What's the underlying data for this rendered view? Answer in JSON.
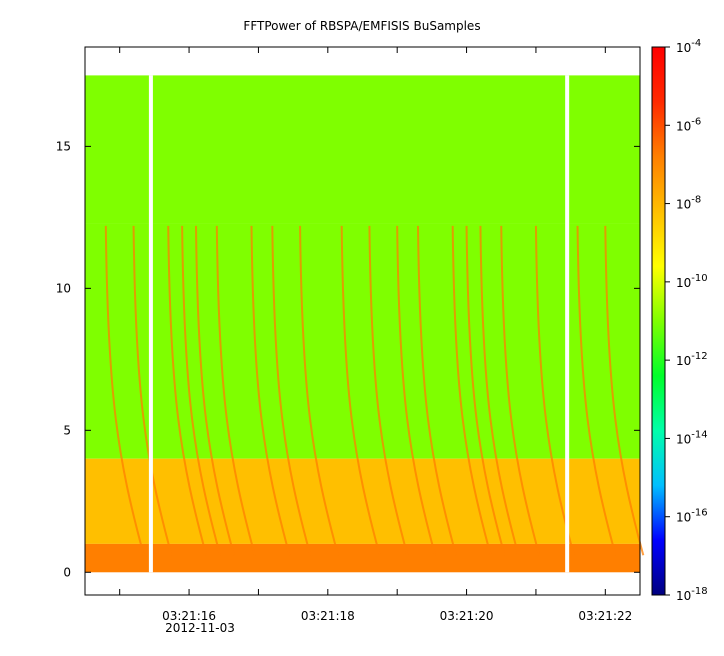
{
  "chart_data": {
    "type": "heatmap",
    "title": "FFTPower of RBSPA/EMFISIS  BuSamples",
    "x": {
      "ticks": [
        "03:21:16",
        "03:21:18",
        "03:21:20",
        "03:21:22"
      ],
      "tick_seconds": [
        16,
        18,
        20,
        22
      ],
      "range_seconds": [
        14.5,
        22.5
      ],
      "date_label": "2012-11-03"
    },
    "y": {
      "ticks": [
        "0",
        "5",
        "10",
        "15"
      ],
      "tick_values": [
        0,
        5,
        10,
        15
      ],
      "range": [
        -0.8,
        18.5
      ],
      "data_top": 17.5
    },
    "colorbar": {
      "scale": "log",
      "range": [
        "1e-18",
        "1e-4"
      ],
      "ticks": [
        "10",
        "10",
        "10",
        "10",
        "10",
        "10",
        "10",
        "10"
      ],
      "tick_exponents": [
        "-4",
        "-6",
        "-8",
        "-10",
        "-12",
        "-14",
        "-16",
        "-18"
      ],
      "tick_powers": [
        -4,
        -6,
        -8,
        -10,
        -12,
        -14,
        -16,
        -18
      ],
      "colors": [
        "#00007f",
        "#0000ff",
        "#00bfff",
        "#00ffaa",
        "#00ff2a",
        "#7fff00",
        "#ffff00",
        "#ffbf00",
        "#ff7f00",
        "#ff2a00",
        "#ff0000"
      ]
    },
    "data_gaps_seconds": [
      15.45,
      21.45
    ],
    "bands": [
      {
        "freq_from": 12.3,
        "freq_to": 17.5,
        "power_exp": -11.6
      },
      {
        "freq_from": 4.0,
        "freq_to": 12.3,
        "power_exp": -10.3
      },
      {
        "freq_from": 1.0,
        "freq_to": 4.0,
        "power_exp": -8.5
      },
      {
        "freq_from": 0.0,
        "freq_to": 1.0,
        "power_exp": -7.0
      }
    ],
    "emission_times_seconds": [
      14.8,
      15.2,
      15.7,
      15.9,
      16.1,
      16.4,
      16.9,
      17.2,
      17.6,
      18.2,
      18.6,
      19.0,
      19.3,
      19.8,
      20.0,
      20.2,
      20.5,
      21.0,
      21.6,
      22.0
    ]
  }
}
